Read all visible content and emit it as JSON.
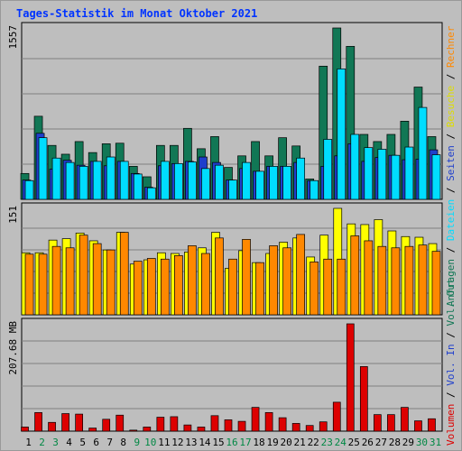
{
  "chart_data": {
    "type": "bar",
    "title": "Tages-Statistik im Monat Oktober 2021",
    "x": [
      "1",
      "2",
      "3",
      "4",
      "5",
      "6",
      "7",
      "8",
      "9",
      "10",
      "11",
      "12",
      "13",
      "14",
      "15",
      "16",
      "17",
      "18",
      "19",
      "20",
      "21",
      "22",
      "23",
      "24",
      "25",
      "26",
      "27",
      "28",
      "29",
      "30",
      "31"
    ],
    "weekend_days": [
      "2",
      "3",
      "9",
      "10",
      "16",
      "17",
      "23",
      "24",
      "30",
      "31"
    ],
    "panels": [
      {
        "id": "top",
        "y_label": "1557",
        "ymax": 1557,
        "series": [
          {
            "name": "Anfragen",
            "color": "#117755",
            "values": [
              235,
              755,
              490,
              410,
              525,
              425,
              505,
              510,
              300,
              205,
              490,
              490,
              645,
              460,
              570,
              290,
              395,
              525,
              395,
              560,
              485,
              185,
              1210,
              1557,
              1390,
              590,
              525,
              590,
              710,
              1020,
              570
            ]
          },
          {
            "name": "Seiten",
            "color": "#1F3FCC",
            "values": [
              175,
              600,
              275,
              355,
              310,
              345,
              305,
              345,
              235,
              110,
              305,
              325,
              345,
              385,
              335,
              175,
              280,
              255,
              300,
              300,
              335,
              170,
              300,
              395,
              505,
              345,
              380,
              400,
              360,
              365,
              450
            ]
          },
          {
            "name": "Dateien",
            "color": "#00DDFF",
            "values": [
              170,
              560,
              375,
              335,
              300,
              345,
              385,
              345,
              230,
              105,
              345,
              325,
              340,
              280,
              310,
              175,
              335,
              255,
              300,
              300,
              375,
              170,
              545,
              1185,
              590,
              470,
              455,
              400,
              475,
              835,
              405
            ]
          }
        ]
      },
      {
        "id": "middle",
        "y_label": "151",
        "ymax": 151,
        "series": [
          {
            "name": "Besuche",
            "color": "#FFFF00",
            "values": [
              88,
              88,
              106,
              108,
              116,
              105,
              92,
              117,
              72,
              78,
              88,
              87,
              89,
              95,
              117,
              66,
              91,
              74,
              87,
              103,
              109,
              82,
              113,
              151,
              129,
              128,
              135,
              119,
              111,
              110,
              101
            ]
          },
          {
            "name": "Rechner",
            "color": "#FF8800",
            "values": [
              86,
              86,
              97,
              95,
              113,
              101,
              92,
              117,
              76,
              80,
              79,
              84,
              98,
              87,
              109,
              79,
              107,
              74,
              98,
              95,
              114,
              75,
              79,
              79,
              112,
              105,
              97,
              95,
              97,
              99,
              90
            ]
          }
        ]
      },
      {
        "id": "bottom",
        "y_label": "207.68 MB",
        "ymax": 207.68,
        "series": [
          {
            "name": "Volumen",
            "color": "#DD0000",
            "values": [
              8,
              36,
              17,
              34,
              33,
              6,
              23,
              31,
              2,
              8,
              27,
              28,
              12,
              8,
              30,
              22,
              19,
              46,
              36,
              26,
              15,
              11,
              18,
              56,
              207.68,
              125,
              32,
              32,
              46,
              20,
              24
            ]
          }
        ]
      }
    ],
    "legend_top": [
      {
        "text": "Anfragen",
        "color": "#117755"
      },
      {
        "text": " / ",
        "color": "#000000"
      },
      {
        "text": "Dateien",
        "color": "#00DDFF"
      },
      {
        "text": " / ",
        "color": "#000000"
      },
      {
        "text": "Seiten",
        "color": "#1F3FCC"
      },
      {
        "text": " / ",
        "color": "#000000"
      },
      {
        "text": "Besuche",
        "color": "#DDDD00"
      },
      {
        "text": " / ",
        "color": "#000000"
      },
      {
        "text": "Rechner",
        "color": "#FF8800"
      }
    ],
    "legend_bottom": [
      {
        "text": "Volumen",
        "color": "#DD0000"
      },
      {
        "text": " / ",
        "color": "#000000"
      },
      {
        "text": "Vol. In",
        "color": "#1F3FCC"
      },
      {
        "text": " / ",
        "color": "#000000"
      },
      {
        "text": "Vol. Out",
        "color": "#117755"
      }
    ],
    "grid": true,
    "colors": {
      "background": "#BEBEBE",
      "title": "#0033FF",
      "weekday": "#000000",
      "weekend": "#008844",
      "frame": "#999999"
    }
  }
}
